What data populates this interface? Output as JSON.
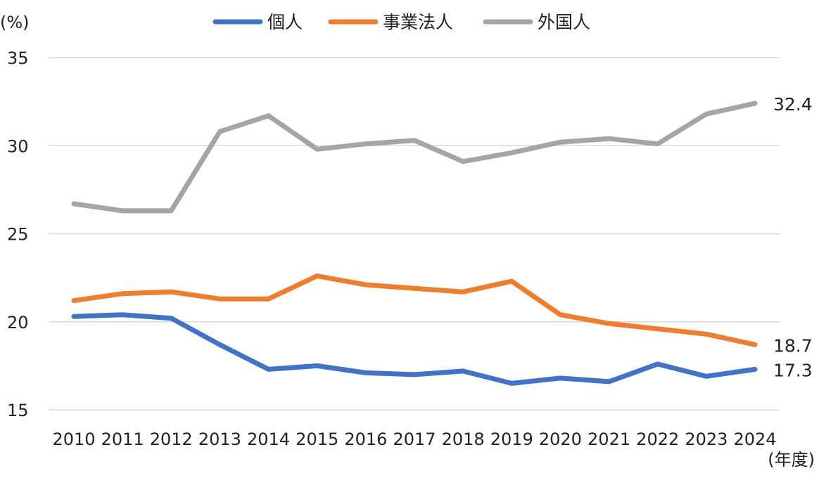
{
  "chart_data": {
    "type": "line",
    "y_unit_label": "(%)",
    "x_unit_label": "(年度)",
    "categories": [
      "2010",
      "2011",
      "2012",
      "2013",
      "2014",
      "2015",
      "2016",
      "2017",
      "2018",
      "2019",
      "2020",
      "2021",
      "2022",
      "2023",
      "2024"
    ],
    "ylim": [
      15,
      35
    ],
    "yticks": [
      15,
      20,
      25,
      30,
      35
    ],
    "grid": true,
    "legend_position": "top-center",
    "series": [
      {
        "name": "個人",
        "color": "#4472C4",
        "values": [
          20.3,
          20.4,
          20.2,
          18.7,
          17.3,
          17.5,
          17.1,
          17.0,
          17.2,
          16.5,
          16.8,
          16.6,
          17.6,
          16.9,
          17.3
        ],
        "end_label": "17.3"
      },
      {
        "name": "事業法人",
        "color": "#ED7D31",
        "values": [
          21.2,
          21.6,
          21.7,
          21.3,
          21.3,
          22.6,
          22.1,
          21.9,
          21.7,
          22.3,
          20.4,
          19.9,
          19.6,
          19.3,
          18.7
        ],
        "end_label": "18.7"
      },
      {
        "name": "外国人",
        "color": "#A5A5A5",
        "values": [
          26.7,
          26.3,
          26.3,
          30.8,
          31.7,
          29.8,
          30.1,
          30.3,
          29.1,
          29.6,
          30.2,
          30.4,
          30.1,
          31.8,
          32.4
        ],
        "end_label": "32.4"
      }
    ]
  },
  "colors": {
    "gridline": "#D9D9D9",
    "text": "#222222"
  }
}
